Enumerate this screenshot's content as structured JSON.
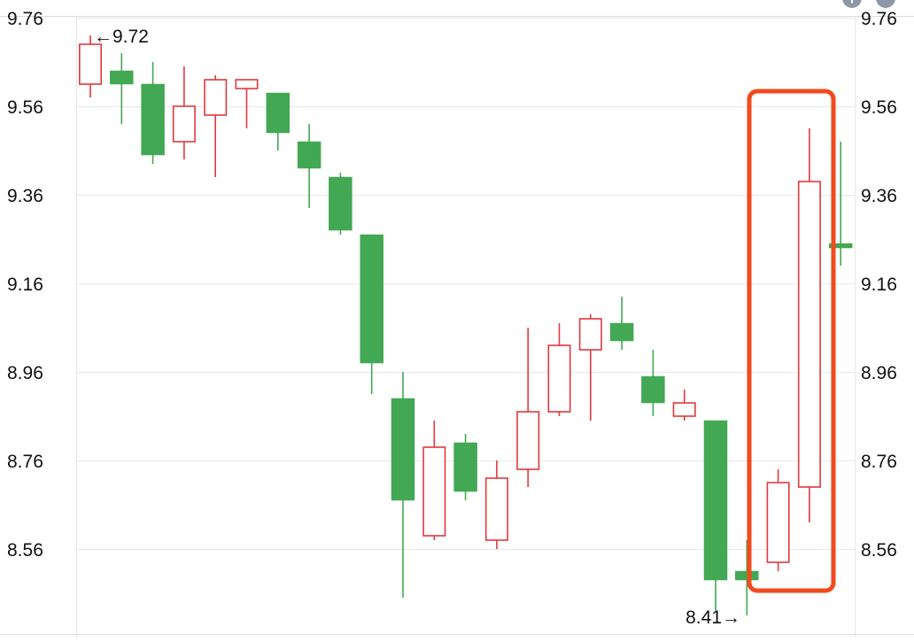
{
  "chart_data": {
    "type": "candlestick",
    "up_color": "#e0393e",
    "down_color": "#43a853",
    "highlight_color": "#f24a1d",
    "y_ticks": [
      "9.76",
      "9.56",
      "9.36",
      "9.16",
      "8.96",
      "8.76",
      "8.56"
    ],
    "ylim": [
      8.4,
      9.78
    ],
    "grid": true,
    "annotations": {
      "max_label": "←9.72",
      "min_label": "8.41→"
    },
    "candles": [
      {
        "open": 9.61,
        "close": 9.7,
        "high": 9.72,
        "low": 9.58
      },
      {
        "open": 9.64,
        "close": 9.61,
        "high": 9.68,
        "low": 9.52
      },
      {
        "open": 9.61,
        "close": 9.45,
        "high": 9.66,
        "low": 9.43
      },
      {
        "open": 9.48,
        "close": 9.56,
        "high": 9.65,
        "low": 9.44
      },
      {
        "open": 9.54,
        "close": 9.62,
        "high": 9.63,
        "low": 9.4
      },
      {
        "open": 9.6,
        "close": 9.62,
        "high": 9.62,
        "low": 9.51
      },
      {
        "open": 9.59,
        "close": 9.5,
        "high": 9.59,
        "low": 9.46
      },
      {
        "open": 9.48,
        "close": 9.42,
        "high": 9.52,
        "low": 9.33
      },
      {
        "open": 9.4,
        "close": 9.28,
        "high": 9.41,
        "low": 9.27
      },
      {
        "open": 9.27,
        "close": 8.98,
        "high": 9.27,
        "low": 8.91
      },
      {
        "open": 8.9,
        "close": 8.67,
        "high": 8.96,
        "low": 8.45
      },
      {
        "open": 8.59,
        "close": 8.79,
        "high": 8.85,
        "low": 8.58
      },
      {
        "open": 8.8,
        "close": 8.69,
        "high": 8.82,
        "low": 8.67
      },
      {
        "open": 8.58,
        "close": 8.72,
        "high": 8.76,
        "low": 8.56
      },
      {
        "open": 8.74,
        "close": 8.87,
        "high": 9.06,
        "low": 8.7
      },
      {
        "open": 8.87,
        "close": 9.02,
        "high": 9.07,
        "low": 8.86
      },
      {
        "open": 9.01,
        "close": 9.08,
        "high": 9.09,
        "low": 8.85
      },
      {
        "open": 9.07,
        "close": 9.03,
        "high": 9.13,
        "low": 9.01
      },
      {
        "open": 8.95,
        "close": 8.89,
        "high": 9.01,
        "low": 8.86
      },
      {
        "open": 8.86,
        "close": 8.89,
        "high": 8.92,
        "low": 8.85
      },
      {
        "open": 8.85,
        "close": 8.49,
        "high": 8.85,
        "low": 8.42
      },
      {
        "open": 8.51,
        "close": 8.49,
        "high": 8.58,
        "low": 8.41
      },
      {
        "open": 8.53,
        "close": 8.71,
        "high": 8.74,
        "low": 8.51
      },
      {
        "open": 8.7,
        "close": 9.39,
        "high": 9.51,
        "low": 8.62
      },
      {
        "open": 9.25,
        "close": 9.24,
        "high": 9.48,
        "low": 9.2
      }
    ],
    "highlight": {
      "from_index": 21,
      "to_index": 23
    }
  },
  "zoom_controls": {
    "zoom_in_symbol": "+",
    "zoom_out_symbol": "−"
  }
}
